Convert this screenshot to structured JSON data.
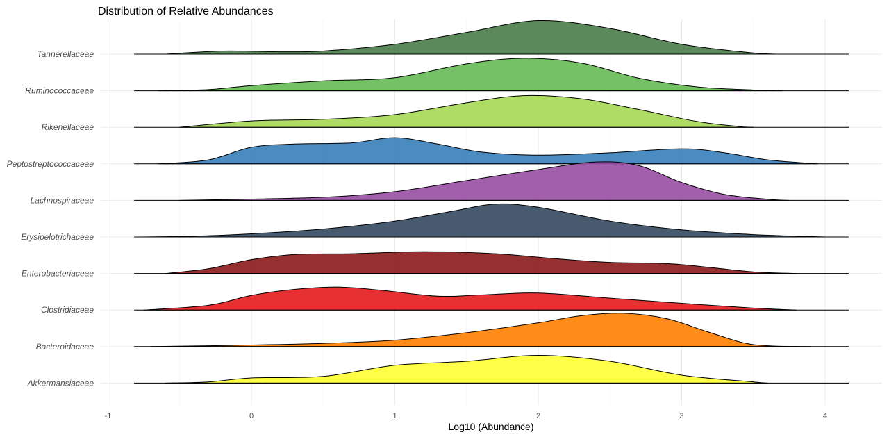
{
  "chart_data": {
    "type": "ridgeline",
    "title": "Distribution of Relative Abundances",
    "xlabel": "Log10 (Abundance)",
    "ylabel": "",
    "xlim": [
      -1.1,
      4.3
    ],
    "xticks": [
      "-1",
      "0",
      "1",
      "2",
      "3",
      "4"
    ],
    "grid": true,
    "legend": "none",
    "series": [
      {
        "name": "Akkermansiaceae",
        "color": "#ffff33",
        "x_range": [
          -0.6,
          3.6
        ],
        "points": [
          [
            -0.6,
            0
          ],
          [
            -0.3,
            0.03
          ],
          [
            0,
            0.13
          ],
          [
            0.5,
            0.17
          ],
          [
            1,
            0.45
          ],
          [
            1.5,
            0.55
          ],
          [
            2,
            0.7
          ],
          [
            2.5,
            0.55
          ],
          [
            3,
            0.2
          ],
          [
            3.5,
            0.03
          ],
          [
            3.6,
            0
          ]
        ]
      },
      {
        "name": "Bacteroidaceae",
        "color": "#ff7f00",
        "x_range": [
          -0.7,
          3.9
        ],
        "points": [
          [
            -0.7,
            0
          ],
          [
            -0.3,
            0.02
          ],
          [
            0,
            0.04
          ],
          [
            0.5,
            0.08
          ],
          [
            1,
            0.16
          ],
          [
            1.5,
            0.35
          ],
          [
            2,
            0.6
          ],
          [
            2.3,
            0.78
          ],
          [
            2.6,
            0.84
          ],
          [
            2.9,
            0.7
          ],
          [
            3.2,
            0.35
          ],
          [
            3.5,
            0.05
          ],
          [
            3.9,
            0
          ]
        ]
      },
      {
        "name": "Clostridiaceae",
        "color": "#e41a1c",
        "x_range": [
          -0.75,
          3.8
        ],
        "points": [
          [
            -0.75,
            0
          ],
          [
            -0.3,
            0.12
          ],
          [
            0,
            0.37
          ],
          [
            0.3,
            0.52
          ],
          [
            0.6,
            0.58
          ],
          [
            0.9,
            0.5
          ],
          [
            1.3,
            0.35
          ],
          [
            1.6,
            0.38
          ],
          [
            2,
            0.43
          ],
          [
            2.5,
            0.3
          ],
          [
            3,
            0.17
          ],
          [
            3.5,
            0.05
          ],
          [
            3.8,
            0
          ]
        ]
      },
      {
        "name": "Enterobacteriaceae",
        "color": "#8b1a1a",
        "x_range": [
          -0.6,
          3.8
        ],
        "points": [
          [
            -0.6,
            0
          ],
          [
            -0.3,
            0.12
          ],
          [
            0,
            0.35
          ],
          [
            0.3,
            0.48
          ],
          [
            0.7,
            0.5
          ],
          [
            1.2,
            0.55
          ],
          [
            1.7,
            0.5
          ],
          [
            2.1,
            0.38
          ],
          [
            2.5,
            0.28
          ],
          [
            2.9,
            0.25
          ],
          [
            3.2,
            0.15
          ],
          [
            3.5,
            0.04
          ],
          [
            3.8,
            0
          ]
        ]
      },
      {
        "name": "Erysipelotrichaceae",
        "color": "#34495e",
        "x_range": [
          -0.8,
          4.0
        ],
        "points": [
          [
            -0.8,
            0
          ],
          [
            -0.4,
            0.02
          ],
          [
            0,
            0.08
          ],
          [
            0.5,
            0.2
          ],
          [
            1,
            0.4
          ],
          [
            1.4,
            0.65
          ],
          [
            1.7,
            0.83
          ],
          [
            2,
            0.75
          ],
          [
            2.5,
            0.4
          ],
          [
            3,
            0.18
          ],
          [
            3.5,
            0.06
          ],
          [
            4,
            0
          ]
        ]
      },
      {
        "name": "Lachnospiraceae",
        "color": "#984ea3",
        "x_range": [
          -0.5,
          3.75
        ],
        "points": [
          [
            -0.5,
            0
          ],
          [
            -0.2,
            0.02
          ],
          [
            0.5,
            0.08
          ],
          [
            1,
            0.22
          ],
          [
            1.5,
            0.5
          ],
          [
            2,
            0.78
          ],
          [
            2.4,
            0.97
          ],
          [
            2.7,
            0.88
          ],
          [
            3,
            0.45
          ],
          [
            3.3,
            0.15
          ],
          [
            3.6,
            0.03
          ],
          [
            3.75,
            0
          ]
        ]
      },
      {
        "name": "Peptostreptococcaceae",
        "color": "#377eb8",
        "x_range": [
          -0.65,
          3.95
        ],
        "points": [
          [
            -0.65,
            0
          ],
          [
            -0.3,
            0.1
          ],
          [
            0,
            0.42
          ],
          [
            0.3,
            0.5
          ],
          [
            0.7,
            0.53
          ],
          [
            1,
            0.66
          ],
          [
            1.3,
            0.5
          ],
          [
            1.6,
            0.3
          ],
          [
            2,
            0.22
          ],
          [
            2.5,
            0.28
          ],
          [
            3,
            0.38
          ],
          [
            3.3,
            0.28
          ],
          [
            3.6,
            0.1
          ],
          [
            3.95,
            0
          ]
        ]
      },
      {
        "name": "Rikenellaceae",
        "color": "#a6d854",
        "x_range": [
          -0.5,
          3.5
        ],
        "points": [
          [
            -0.5,
            0
          ],
          [
            0,
            0.16
          ],
          [
            0.5,
            0.2
          ],
          [
            1,
            0.32
          ],
          [
            1.5,
            0.62
          ],
          [
            1.9,
            0.8
          ],
          [
            2.3,
            0.72
          ],
          [
            2.7,
            0.45
          ],
          [
            3.1,
            0.15
          ],
          [
            3.4,
            0.02
          ],
          [
            3.5,
            0
          ]
        ]
      },
      {
        "name": "Ruminococcaceae",
        "color": "#66bb55",
        "x_range": [
          -0.65,
          3.7
        ],
        "points": [
          [
            -0.65,
            0
          ],
          [
            -0.3,
            0.03
          ],
          [
            0,
            0.13
          ],
          [
            0.5,
            0.25
          ],
          [
            1,
            0.33
          ],
          [
            1.5,
            0.68
          ],
          [
            1.9,
            0.82
          ],
          [
            2.3,
            0.7
          ],
          [
            2.7,
            0.32
          ],
          [
            3.1,
            0.1
          ],
          [
            3.5,
            0.02
          ],
          [
            3.7,
            0
          ]
        ]
      },
      {
        "name": "Tannerellaceae",
        "color": "#4a7c4a",
        "x_range": [
          -0.6,
          3.7
        ],
        "points": [
          [
            -0.6,
            0
          ],
          [
            -0.2,
            0.08
          ],
          [
            0.2,
            0.06
          ],
          [
            0.5,
            0.08
          ],
          [
            1,
            0.25
          ],
          [
            1.5,
            0.55
          ],
          [
            2,
            0.85
          ],
          [
            2.5,
            0.65
          ],
          [
            3,
            0.25
          ],
          [
            3.5,
            0.03
          ],
          [
            3.7,
            0
          ]
        ]
      }
    ]
  }
}
